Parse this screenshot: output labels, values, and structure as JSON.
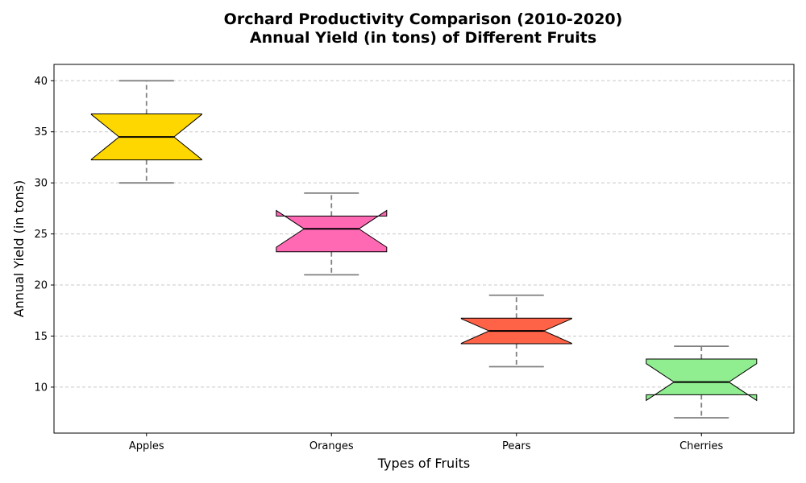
{
  "chart_data": {
    "type": "box",
    "title_line1": "Orchard Productivity Comparison (2010-2020)",
    "title_line2": "Annual Yield (in tons) of Different Fruits",
    "xlabel": "Types of Fruits",
    "ylabel": "Annual Yield (in tons)",
    "ylim": [
      5.5,
      41.6
    ],
    "yticks": [
      10,
      15,
      20,
      25,
      30,
      35,
      40
    ],
    "ytick_labels": [
      "10",
      "15",
      "20",
      "25",
      "30",
      "35",
      "40"
    ],
    "grid": "y-dashed",
    "notched": true,
    "categories": [
      "Apples",
      "Oranges",
      "Pears",
      "Cherries"
    ],
    "boxes": [
      {
        "category": "Apples",
        "whisker_low": 30,
        "q1": 32.25,
        "median": 34.5,
        "q3": 36.75,
        "whisker_high": 40,
        "notch_low": 32.3,
        "notch_high": 36.7,
        "color": "#FFD700"
      },
      {
        "category": "Oranges",
        "whisker_low": 21,
        "q1": 23.25,
        "median": 25.5,
        "q3": 26.75,
        "whisker_high": 29,
        "notch_low": 23.7,
        "notch_high": 27.3,
        "color": "#FF69B4"
      },
      {
        "category": "Pears",
        "whisker_low": 12,
        "q1": 14.25,
        "median": 15.5,
        "q3": 16.75,
        "whisker_high": 19,
        "notch_low": 14.3,
        "notch_high": 16.7,
        "color": "#FF6347"
      },
      {
        "category": "Cherries",
        "whisker_low": 7,
        "q1": 9.25,
        "median": 10.5,
        "q3": 12.75,
        "whisker_high": 14,
        "notch_low": 8.7,
        "notch_high": 12.3,
        "color": "#90EE90"
      }
    ],
    "whisker_color": "#808080",
    "median_color": "#000000"
  }
}
